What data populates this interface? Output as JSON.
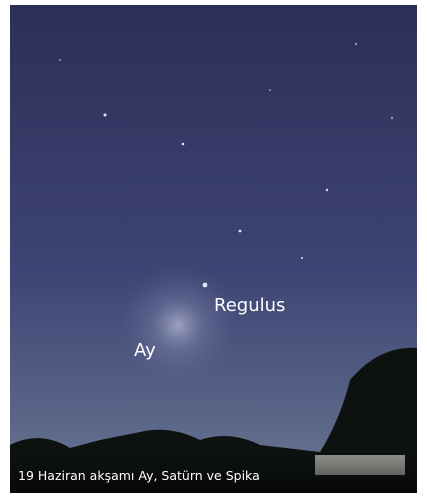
{
  "labels": {
    "star": "Regulus",
    "moon": "Ay"
  },
  "caption": "19 Haziran akşamı Ay, Satürn ve Spika"
}
